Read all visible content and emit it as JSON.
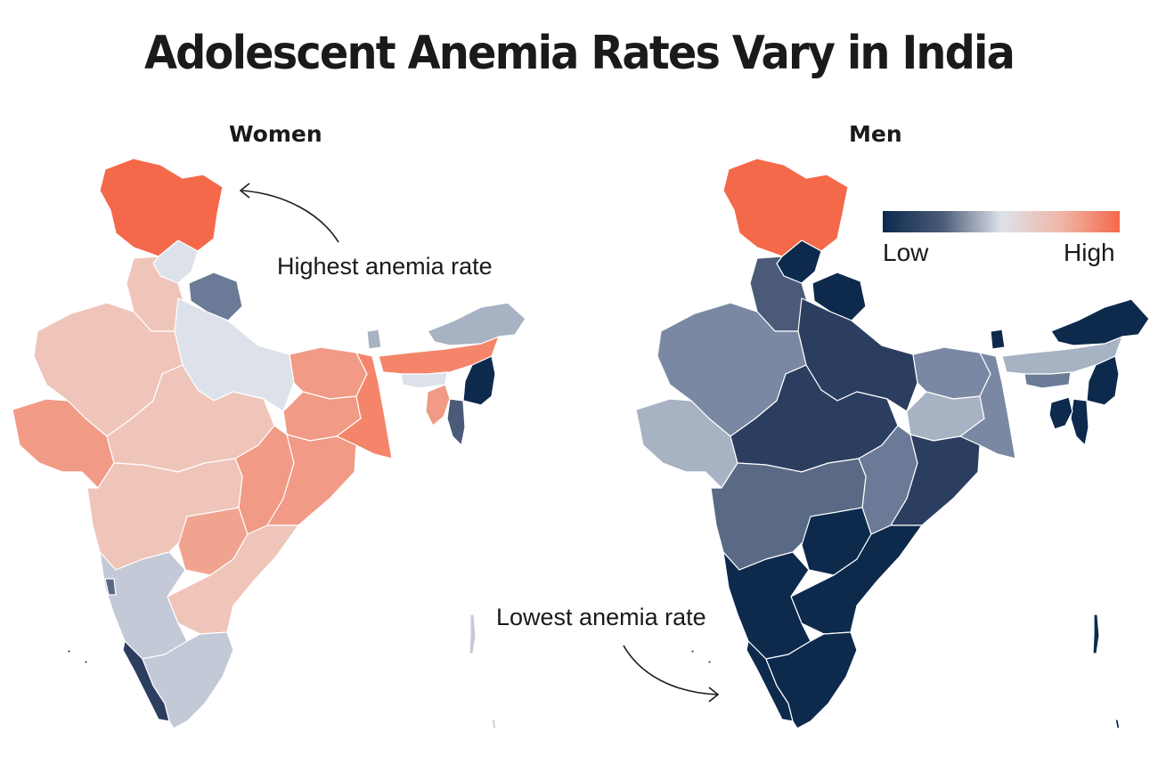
{
  "title": "Adolescent Anemia Rates Vary in India",
  "panels": {
    "women": "Women",
    "men": "Men"
  },
  "annotations": {
    "highest": "Highest anemia rate",
    "lowest": "Lowest anemia rate"
  },
  "legend": {
    "low": "Low",
    "high": "High",
    "colors": [
      "#0d2a4d",
      "#4a5a78",
      "#dde2ea",
      "#f0b7a8",
      "#f4694a"
    ]
  },
  "colors": {
    "highest": "#f4694a",
    "high": "#f19a85",
    "mid_high": "#efc4b9",
    "neutral": "#dde2ea",
    "mid_low": "#a7b2c3",
    "low": "#5a6a85",
    "lowest": "#0d2a4d",
    "border": "#ffffff"
  }
}
